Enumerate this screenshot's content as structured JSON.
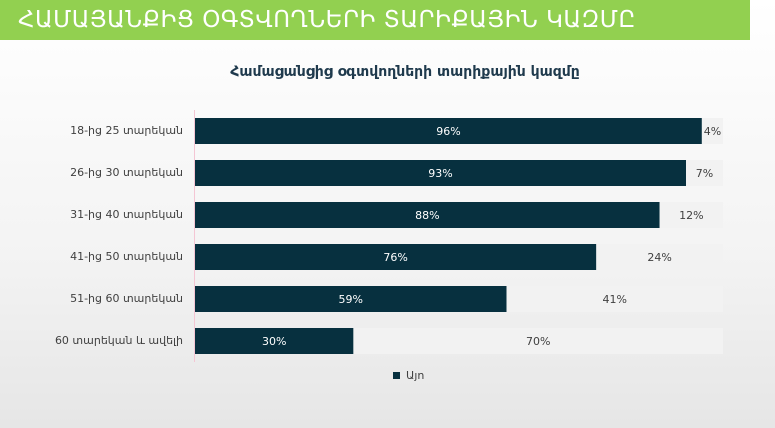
{
  "header": {
    "title": "ՀԱՄԱՅԱՆՔԻՑ ՕԳՏՎՈՂՆԵՐԻ ՏԱՐԻՔԱՅԻՆ ԿԱԶՄԸ"
  },
  "chart_data": {
    "type": "stacked-bar-horizontal",
    "title": "Համացանցից օգտվողների տարիքային կազմը",
    "categories": [
      "18-ից 25 տարեկան",
      "26-ից 30 տարեկան",
      "31-ից 40 տարեկան",
      "41-ից 50 տարեկան",
      "51-ից 60 տարեկան",
      "60 տարեկան և ավելի"
    ],
    "series": [
      {
        "name": "Այո",
        "color": "#07303f",
        "values": [
          96,
          93,
          88,
          76,
          59,
          30
        ],
        "value_labels": [
          "96%",
          "93%",
          "88%",
          "76%",
          "59%",
          "30%"
        ]
      },
      {
        "color": "#f2f2f2",
        "values": [
          4,
          7,
          12,
          24,
          41,
          70
        ],
        "value_labels": [
          "4%",
          "7%",
          "12%",
          "24%",
          "41%",
          "70%"
        ]
      }
    ],
    "xlim": [
      0,
      100
    ]
  }
}
